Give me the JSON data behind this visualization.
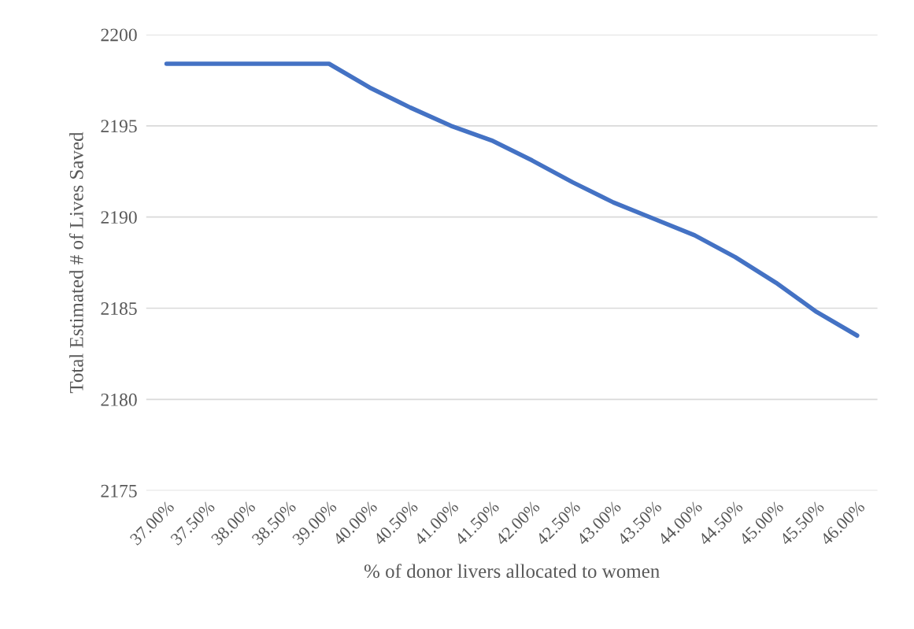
{
  "chart_data": {
    "type": "line",
    "xlabel": "% of donor livers allocated to women",
    "ylabel": "Total Estimated # of Lives Saved",
    "categories": [
      "37.00%",
      "37.50%",
      "38.00%",
      "38.50%",
      "39.00%",
      "40.00%",
      "40.50%",
      "41.00%",
      "41.50%",
      "42.00%",
      "42.50%",
      "43.00%",
      "43.50%",
      "44.00%",
      "44.50%",
      "45.00%",
      "45.50%",
      "46.00%"
    ],
    "series": [
      {
        "color": "#4472c4",
        "values": [
          2198.4,
          2198.4,
          2198.4,
          2198.4,
          2198.4,
          2197.1,
          2196.0,
          2195.0,
          2194.2,
          2193.1,
          2191.9,
          2190.8,
          2189.9,
          2189.0,
          2187.8,
          2186.4,
          2184.8,
          2183.5
        ]
      }
    ],
    "ylim": [
      2175,
      2200
    ],
    "yticks": [
      2175,
      2180,
      2185,
      2190,
      2195,
      2200
    ],
    "grid": "y",
    "marker": "none",
    "line_style": "solid"
  }
}
